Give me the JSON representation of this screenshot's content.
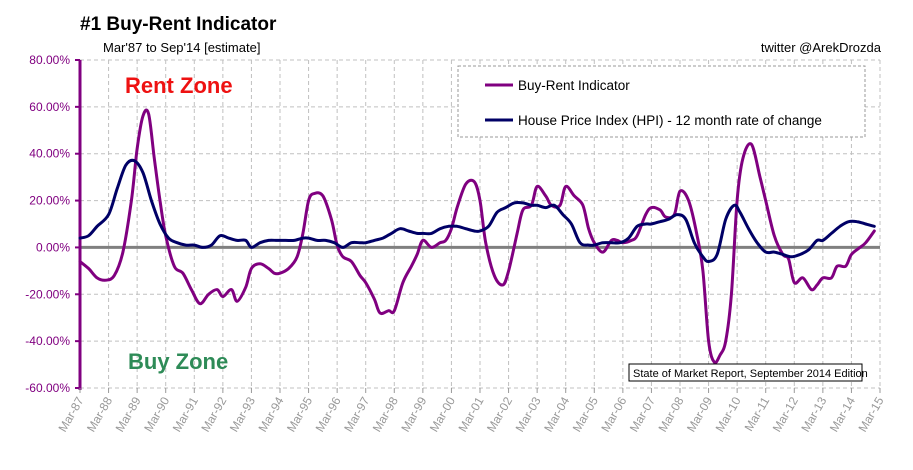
{
  "header": {
    "title": "#1 Buy-Rent Indicator",
    "subtitle": "Mar'87 to Sep'14 [estimate]",
    "handle": "twitter @ArekDrozda"
  },
  "annotations": {
    "rent_zone": "Rent Zone",
    "buy_zone": "Buy Zone",
    "source": "State of Market Report, September 2014 Edition"
  },
  "colors": {
    "buy_rent": "#800080",
    "hpi": "#000066",
    "zero_line": "#808080",
    "grid": "#c0c0c0",
    "axis": "#800080"
  },
  "chart_data": {
    "type": "line",
    "ylim": [
      -60,
      80
    ],
    "yticks": [
      80,
      60,
      40,
      20,
      0,
      -20,
      -40,
      -60
    ],
    "ytick_labels": [
      "80.00%",
      "60.00%",
      "40.00%",
      "20.00%",
      "0.00%",
      "-20.00%",
      "-40.00%",
      "-60.00%"
    ],
    "xlim": [
      1987,
      2015
    ],
    "x_tick_labels": [
      "Mar-87",
      "Mar-88",
      "Mar-89",
      "Mar-90",
      "Mar-91",
      "Mar-92",
      "Mar-93",
      "Mar-94",
      "Mar-95",
      "Mar-96",
      "Mar-97",
      "Mar-98",
      "Mar-99",
      "Mar-00",
      "Mar-01",
      "Mar-02",
      "Mar-03",
      "Mar-04",
      "Mar-05",
      "Mar-06",
      "Mar-07",
      "Mar-08",
      "Mar-09",
      "Mar-10",
      "Mar-11",
      "Mar-12",
      "Mar-13",
      "Mar-14",
      "Mar-15"
    ],
    "legend": "top-right",
    "grid": true,
    "series": [
      {
        "name": "Buy-Rent Indicator",
        "color": "#800080",
        "x": [
          1987.0,
          1987.3,
          1987.6,
          1987.9,
          1988.2,
          1988.5,
          1988.8,
          1989.0,
          1989.2,
          1989.4,
          1989.6,
          1989.8,
          1990.0,
          1990.3,
          1990.6,
          1990.9,
          1991.2,
          1991.5,
          1991.8,
          1992.0,
          1992.3,
          1992.5,
          1992.8,
          1993.0,
          1993.3,
          1993.6,
          1993.8,
          1994.0,
          1994.3,
          1994.6,
          1994.8,
          1995.0,
          1995.2,
          1995.5,
          1995.8,
          1996.0,
          1996.2,
          1996.5,
          1996.8,
          1997.0,
          1997.3,
          1997.5,
          1997.8,
          1998.0,
          1998.3,
          1998.6,
          1998.8,
          1999.0,
          1999.3,
          1999.6,
          1999.8,
          2000.0,
          2000.2,
          2000.5,
          2000.8,
          2001.0,
          2001.2,
          2001.5,
          2001.8,
          2002.0,
          2002.3,
          2002.5,
          2002.8,
          2003.0,
          2003.3,
          2003.5,
          2003.8,
          2004.0,
          2004.3,
          2004.6,
          2004.8,
          2005.0,
          2005.3,
          2005.6,
          2005.8,
          2006.0,
          2006.3,
          2006.5,
          2006.8,
          2007.0,
          2007.3,
          2007.5,
          2007.8,
          2008.0,
          2008.3,
          2008.6,
          2008.8,
          2009.0,
          2009.2,
          2009.4,
          2009.6,
          2009.8,
          2010.0,
          2010.2,
          2010.5,
          2010.8,
          2011.0,
          2011.3,
          2011.6,
          2011.8,
          2012.0,
          2012.3,
          2012.6,
          2012.8,
          2013.0,
          2013.3,
          2013.5,
          2013.8,
          2014.0,
          2014.3,
          2014.5,
          2014.8
        ],
        "y": [
          -6,
          -9,
          -13,
          -14,
          -12,
          -2,
          20,
          42,
          56,
          57,
          38,
          20,
          5,
          -8,
          -11,
          -18,
          -24,
          -20,
          -18,
          -21,
          -18,
          -23,
          -17,
          -9,
          -7,
          -9,
          -11,
          -11,
          -9,
          -4,
          6,
          20,
          23,
          22,
          12,
          1,
          -4,
          -6,
          -12,
          -15,
          -22,
          -28,
          -27,
          -27,
          -15,
          -8,
          -3,
          3,
          0,
          2,
          3,
          8,
          17,
          27,
          28,
          20,
          2,
          -12,
          -16,
          -10,
          6,
          16,
          18,
          26,
          22,
          18,
          18,
          26,
          22,
          18,
          8,
          2,
          -2,
          3,
          3,
          2,
          3,
          5,
          14,
          17,
          16,
          13,
          14,
          24,
          20,
          5,
          -10,
          -40,
          -49,
          -46,
          -40,
          -20,
          20,
          38,
          44,
          30,
          20,
          5,
          -3,
          -5,
          -15,
          -13,
          -18,
          -16,
          -13,
          -13,
          -8,
          -8,
          -3,
          0,
          2,
          7
        ]
      },
      {
        "name": "House Price Index (HPI) - 12 month rate of change",
        "color": "#000066",
        "x": [
          1987.0,
          1987.3,
          1987.6,
          1988.0,
          1988.3,
          1988.6,
          1988.9,
          1989.2,
          1989.5,
          1989.8,
          1990.1,
          1990.4,
          1990.7,
          1991.0,
          1991.3,
          1991.6,
          1991.9,
          1992.2,
          1992.5,
          1992.8,
          1993.0,
          1993.3,
          1993.6,
          1993.9,
          1994.2,
          1994.5,
          1994.8,
          1995.0,
          1995.3,
          1995.6,
          1995.9,
          1996.2,
          1996.5,
          1996.8,
          1997.0,
          1997.3,
          1997.6,
          1997.9,
          1998.2,
          1998.5,
          1998.8,
          1999.0,
          1999.3,
          1999.6,
          1999.9,
          2000.2,
          2000.5,
          2000.8,
          2001.0,
          2001.3,
          2001.6,
          2001.9,
          2002.2,
          2002.5,
          2002.8,
          2003.0,
          2003.3,
          2003.6,
          2003.9,
          2004.2,
          2004.5,
          2004.8,
          2005.0,
          2005.3,
          2005.6,
          2005.9,
          2006.2,
          2006.5,
          2006.8,
          2007.0,
          2007.3,
          2007.6,
          2007.9,
          2008.2,
          2008.5,
          2008.8,
          2009.0,
          2009.3,
          2009.6,
          2009.9,
          2010.1,
          2010.4,
          2010.7,
          2011.0,
          2011.3,
          2011.6,
          2011.9,
          2012.2,
          2012.5,
          2012.8,
          2013.0,
          2013.3,
          2013.6,
          2013.9,
          2014.2,
          2014.5,
          2014.8
        ],
        "y": [
          4,
          5,
          9,
          14,
          25,
          35,
          37,
          32,
          20,
          10,
          4,
          2,
          1,
          1,
          0,
          1,
          5,
          4,
          3,
          3,
          0,
          2,
          3,
          3,
          3,
          3,
          4,
          4,
          3,
          3,
          2,
          0,
          2,
          2,
          2,
          3,
          4,
          6,
          8,
          7,
          6,
          6,
          6,
          8,
          9,
          9,
          8,
          7,
          7,
          9,
          15,
          17,
          19,
          19,
          18,
          18,
          17,
          18,
          14,
          10,
          2,
          1,
          1,
          2,
          2,
          2,
          4,
          9,
          10,
          10,
          11,
          12,
          14,
          12,
          2,
          -4,
          -6,
          -3,
          12,
          18,
          15,
          8,
          2,
          -2,
          -2,
          -3,
          -4,
          -3,
          -1,
          3,
          3,
          6,
          9,
          11,
          11,
          10,
          9
        ]
      }
    ]
  }
}
